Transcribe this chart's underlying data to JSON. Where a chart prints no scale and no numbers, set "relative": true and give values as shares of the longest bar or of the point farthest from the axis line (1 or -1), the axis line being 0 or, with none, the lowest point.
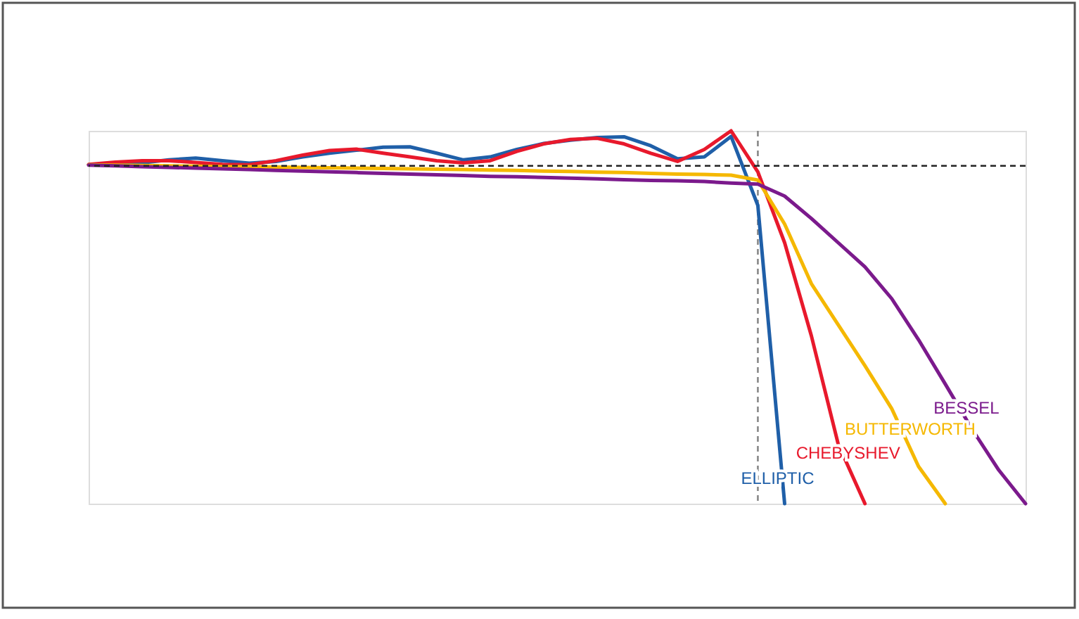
{
  "chart_data": {
    "type": "line",
    "relative": true,
    "tick_labels": false,
    "grid": false,
    "legend": false,
    "marker": "none",
    "line_style": "solid",
    "categories": [
      null,
      null,
      null,
      null,
      null,
      null,
      null,
      null,
      null,
      null,
      null,
      null,
      null,
      null,
      null,
      null,
      null,
      null,
      null,
      null,
      null,
      null,
      null,
      null,
      null,
      null,
      null,
      null,
      null,
      null,
      null,
      null,
      null,
      null,
      null,
      null
    ],
    "series": [
      {
        "name": "ELLIPTIC",
        "color": "#1f5fa8",
        "values": [
          0.909,
          0.911,
          0.914,
          0.922,
          0.927,
          0.92,
          0.913,
          0.918,
          0.93,
          0.94,
          0.948,
          0.956,
          0.957,
          0.94,
          0.922,
          0.93,
          0.95,
          0.966,
          0.975,
          0.982,
          0.984,
          0.96,
          0.925,
          0.93,
          0.985,
          0.8,
          0,
          null,
          null,
          null,
          null,
          null,
          null,
          null,
          null,
          null
        ]
      },
      {
        "name": "CHEBYSHEV",
        "color": "#e8192c",
        "values": [
          0.91,
          0.916,
          0.92,
          0.92,
          0.915,
          0.91,
          0.909,
          0.92,
          0.935,
          0.947,
          0.951,
          0.94,
          0.93,
          0.92,
          0.914,
          0.92,
          0.945,
          0.965,
          0.977,
          0.98,
          0.965,
          0.94,
          0.918,
          0.95,
          1,
          0.89,
          0.7,
          0.45,
          0.16,
          0,
          null,
          null,
          null,
          null,
          null,
          null
        ]
      },
      {
        "name": "BUTTERWORTH",
        "color": "#f5b800",
        "values": [
          0.909,
          0.908,
          0.907,
          0.906,
          0.905,
          0.904,
          0.904,
          0.903,
          0.902,
          0.901,
          0.9,
          0.899,
          0.898,
          0.897,
          0.896,
          0.895,
          0.894,
          0.892,
          0.891,
          0.889,
          0.888,
          0.886,
          0.884,
          0.883,
          0.881,
          0.868,
          0.75,
          0.59,
          0.48,
          0.37,
          0.255,
          0.1,
          0,
          null,
          null,
          null
        ]
      },
      {
        "name": "BESSEL",
        "color": "#7b1a8c",
        "values": [
          0.908,
          0.906,
          0.904,
          0.902,
          0.9,
          0.898,
          0.896,
          0.894,
          0.892,
          0.89,
          0.888,
          0.886,
          0.884,
          0.882,
          0.88,
          0.878,
          0.877,
          0.875,
          0.873,
          0.871,
          0.869,
          0.867,
          0.866,
          0.864,
          0.86,
          0.857,
          0.825,
          0.765,
          0.7,
          0.635,
          0.55,
          0.44,
          0.321,
          0.2,
          0.09,
          0
        ]
      }
    ],
    "ref_lines": [
      {
        "axis": "y",
        "value": 0.906,
        "color": "#222222",
        "line_style": "dashed"
      }
    ]
  }
}
